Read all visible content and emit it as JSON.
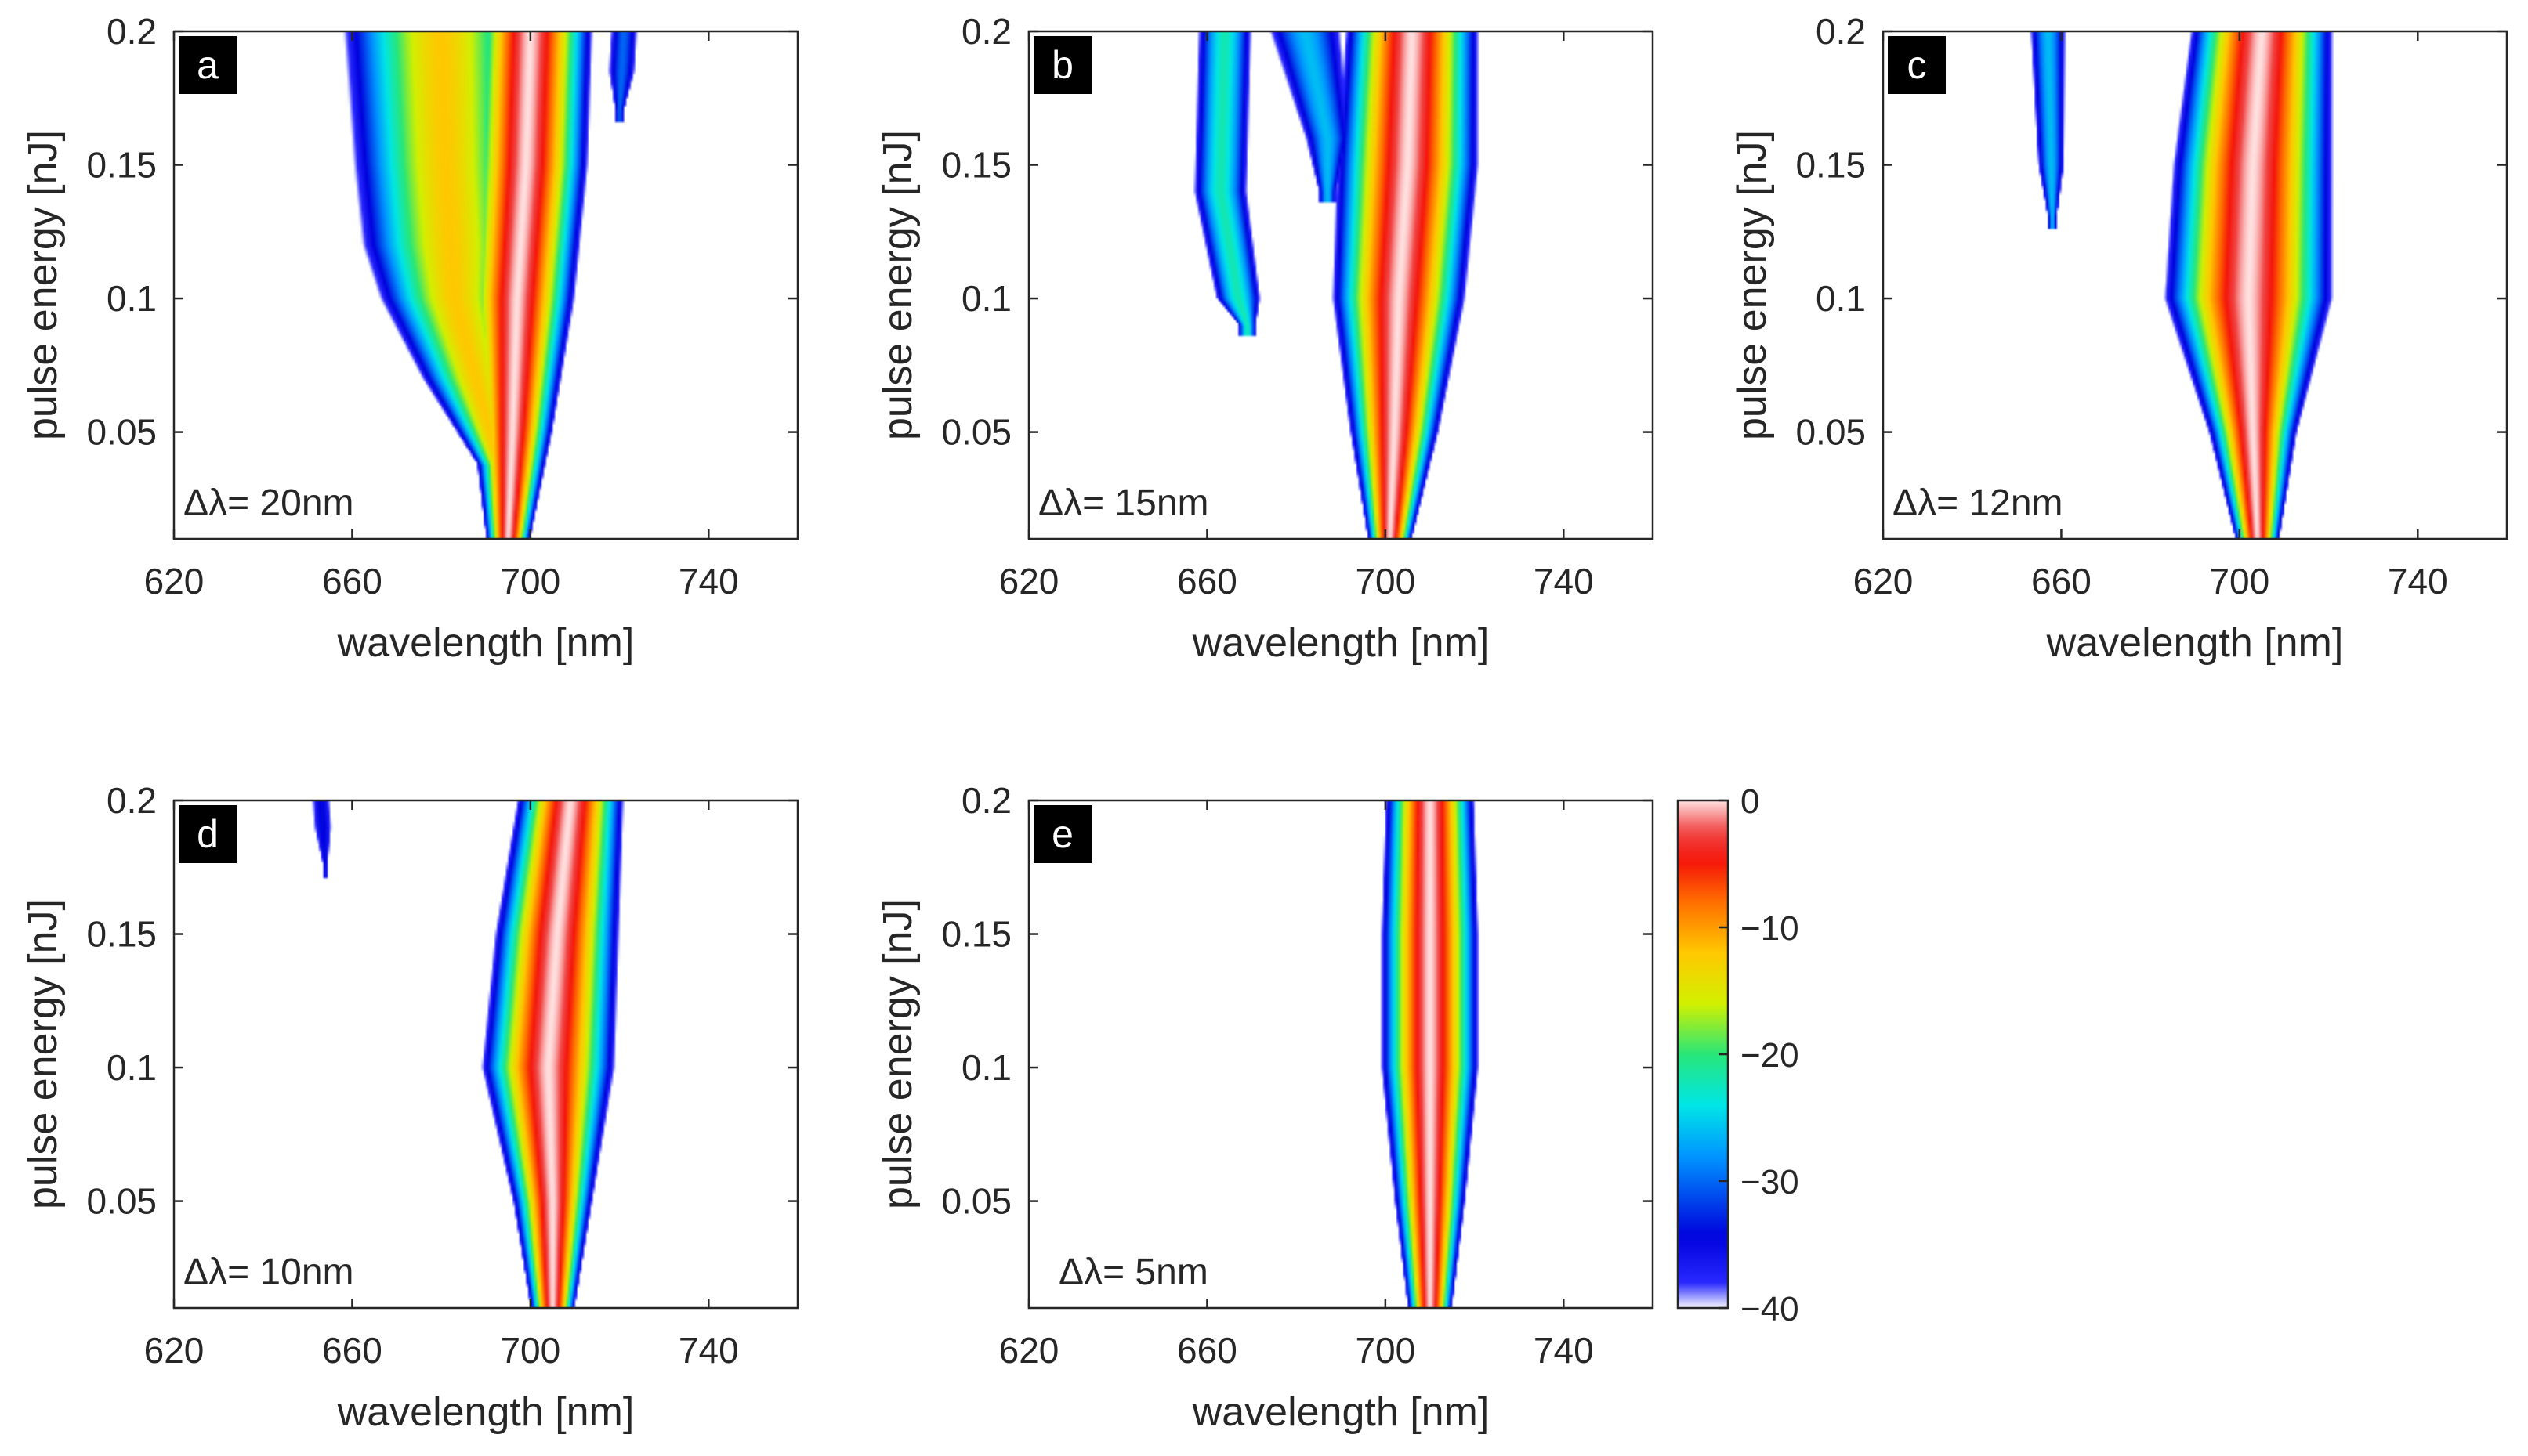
{
  "chart_data": {
    "type": "heatmap",
    "colormap": "jet-to-white",
    "colorbar": {
      "min": -40,
      "max": 0,
      "ticks": [
        0,
        -10,
        -20,
        -30,
        -40
      ],
      "tick_labels": [
        "0",
        "−10",
        "−20",
        "−30",
        "−40"
      ]
    },
    "panels": [
      {
        "tag": "a",
        "annotation": "Δλ= 20nm",
        "xlabel": "wavelength [nm]",
        "ylabel": "pulse energy [nJ]",
        "xlim": [
          620,
          760
        ],
        "ylim": [
          0.01,
          0.2
        ],
        "xticks": [
          620,
          660,
          700,
          740
        ],
        "yticks": [
          0.05,
          0.1,
          0.15,
          0.2
        ],
        "ytick_labels": [
          "0.05",
          "0.1",
          "0.15",
          "0.2"
        ],
        "components": [
          {
            "y_range": [
              0.01,
              0.2
            ],
            "center": [
              [
                0.01,
                695
              ],
              [
                0.05,
                696
              ],
              [
                0.1,
                697
              ],
              [
                0.15,
                699
              ],
              [
                0.2,
                700
              ]
            ],
            "halfwidth": [
              [
                0.01,
                5
              ],
              [
                0.05,
                9
              ],
              [
                0.1,
                13
              ],
              [
                0.15,
                14
              ],
              [
                0.2,
                14
              ]
            ],
            "peak": 0
          },
          {
            "y_range": [
              0.03,
              0.2
            ],
            "center": [
              [
                0.03,
                694
              ],
              [
                0.1,
                683
              ],
              [
                0.15,
                681
              ],
              [
                0.2,
                680
              ]
            ],
            "halfwidth": [
              [
                0.03,
                3
              ],
              [
                0.07,
                12
              ],
              [
                0.12,
                20
              ],
              [
                0.2,
                22
              ]
            ],
            "peak": -12
          },
          {
            "y_range": [
              0.17,
              0.2
            ],
            "center": [
              [
                0.17,
                720
              ],
              [
                0.2,
                721
              ]
            ],
            "halfwidth": [
              [
                0.17,
                1
              ],
              [
                0.185,
                3
              ],
              [
                0.2,
                3
              ]
            ],
            "peak": -30
          }
        ]
      },
      {
        "tag": "b",
        "annotation": "Δλ= 15nm",
        "xlabel": "wavelength [nm]",
        "ylabel": "pulse energy [nJ]",
        "xlim": [
          620,
          760
        ],
        "ylim": [
          0.01,
          0.2
        ],
        "xticks": [
          620,
          660,
          700,
          740
        ],
        "yticks": [
          0.05,
          0.1,
          0.15,
          0.2
        ],
        "ytick_labels": [
          "0.05",
          "0.1",
          "0.15",
          "0.2"
        ],
        "components": [
          {
            "y_range": [
              0.01,
              0.2
            ],
            "center": [
              [
                0.01,
                701
              ],
              [
                0.05,
                702
              ],
              [
                0.1,
                703
              ],
              [
                0.15,
                705
              ],
              [
                0.2,
                706
              ]
            ],
            "halfwidth": [
              [
                0.01,
                5
              ],
              [
                0.05,
                10
              ],
              [
                0.1,
                15
              ],
              [
                0.15,
                16
              ],
              [
                0.2,
                15
              ]
            ],
            "peak": 0
          },
          {
            "y_range": [
              0.09,
              0.2
            ],
            "center": [
              [
                0.09,
                669
              ],
              [
                0.1,
                667
              ],
              [
                0.14,
                663
              ],
              [
                0.2,
                664
              ]
            ],
            "halfwidth": [
              [
                0.09,
                2
              ],
              [
                0.1,
                5
              ],
              [
                0.14,
                6
              ],
              [
                0.2,
                6
              ]
            ],
            "peak": -22
          },
          {
            "y_range": [
              0.14,
              0.2
            ],
            "center": [
              [
                0.14,
                687
              ],
              [
                0.16,
                687
              ],
              [
                0.2,
                682
              ]
            ],
            "halfwidth": [
              [
                0.14,
                2
              ],
              [
                0.16,
                5
              ],
              [
                0.2,
                8
              ]
            ],
            "peak": -26
          }
        ]
      },
      {
        "tag": "c",
        "annotation": "Δλ= 12nm",
        "xlabel": "wavelength [nm]",
        "ylabel": "pulse energy [nJ]",
        "xlim": [
          620,
          760
        ],
        "ylim": [
          0.01,
          0.2
        ],
        "xticks": [
          620,
          660,
          700,
          740
        ],
        "yticks": [
          0.05,
          0.1,
          0.15,
          0.2
        ],
        "ytick_labels": [
          "0.05",
          "0.1",
          "0.15",
          "0.2"
        ],
        "components": [
          {
            "y_range": [
              0.01,
              0.2
            ],
            "center": [
              [
                0.01,
                704
              ],
              [
                0.05,
                703
              ],
              [
                0.1,
                702
              ],
              [
                0.15,
                703
              ],
              [
                0.2,
                705
              ]
            ],
            "halfwidth": [
              [
                0.01,
                5
              ],
              [
                0.05,
                10
              ],
              [
                0.1,
                19
              ],
              [
                0.15,
                18
              ],
              [
                0.2,
                16
              ]
            ],
            "peak": 0
          },
          {
            "y_range": [
              0.13,
              0.2
            ],
            "center": [
              [
                0.13,
                658
              ],
              [
                0.2,
                657
              ]
            ],
            "halfwidth": [
              [
                0.13,
                1
              ],
              [
                0.15,
                3
              ],
              [
                0.2,
                4
              ]
            ],
            "peak": -26
          }
        ]
      },
      {
        "tag": "d",
        "annotation": "Δλ= 10nm",
        "xlabel": "wavelength [nm]",
        "ylabel": "pulse energy [nJ]",
        "xlim": [
          620,
          760
        ],
        "ylim": [
          0.01,
          0.2
        ],
        "xticks": [
          620,
          660,
          700,
          740
        ],
        "yticks": [
          0.05,
          0.1,
          0.15,
          0.2
        ],
        "ytick_labels": [
          "0.05",
          "0.1",
          "0.15",
          "0.2"
        ],
        "components": [
          {
            "y_range": [
              0.01,
              0.2
            ],
            "center": [
              [
                0.01,
                705
              ],
              [
                0.05,
                705
              ],
              [
                0.1,
                704
              ],
              [
                0.15,
                706
              ],
              [
                0.2,
                709
              ]
            ],
            "halfwidth": [
              [
                0.01,
                5
              ],
              [
                0.05,
                9
              ],
              [
                0.1,
                15
              ],
              [
                0.15,
                14
              ],
              [
                0.2,
                12
              ]
            ],
            "peak": 0
          },
          {
            "y_range": [
              0.175,
              0.2
            ],
            "center": [
              [
                0.175,
                654
              ],
              [
                0.2,
                653
              ]
            ],
            "halfwidth": [
              [
                0.175,
                0.5
              ],
              [
                0.19,
                2
              ],
              [
                0.2,
                2
              ]
            ],
            "peak": -34
          }
        ]
      },
      {
        "tag": "e",
        "annotation": "Δλ= 5nm",
        "xlabel": "wavelength [nm]",
        "ylabel": "pulse energy [nJ]",
        "xlim": [
          620,
          760
        ],
        "ylim": [
          0.01,
          0.2
        ],
        "xticks": [
          620,
          660,
          700,
          740
        ],
        "yticks": [
          0.05,
          0.1,
          0.15,
          0.2
        ],
        "ytick_labels": [
          "0.05",
          "0.1",
          "0.15",
          "0.2"
        ],
        "components": [
          {
            "y_range": [
              0.01,
              0.2
            ],
            "center": [
              [
                0.01,
                710
              ],
              [
                0.05,
                710
              ],
              [
                0.1,
                710
              ],
              [
                0.15,
                710
              ],
              [
                0.2,
                710
              ]
            ],
            "halfwidth": [
              [
                0.01,
                5
              ],
              [
                0.05,
                8
              ],
              [
                0.1,
                11
              ],
              [
                0.15,
                11
              ],
              [
                0.2,
                10
              ]
            ],
            "peak": 0
          }
        ]
      }
    ]
  }
}
